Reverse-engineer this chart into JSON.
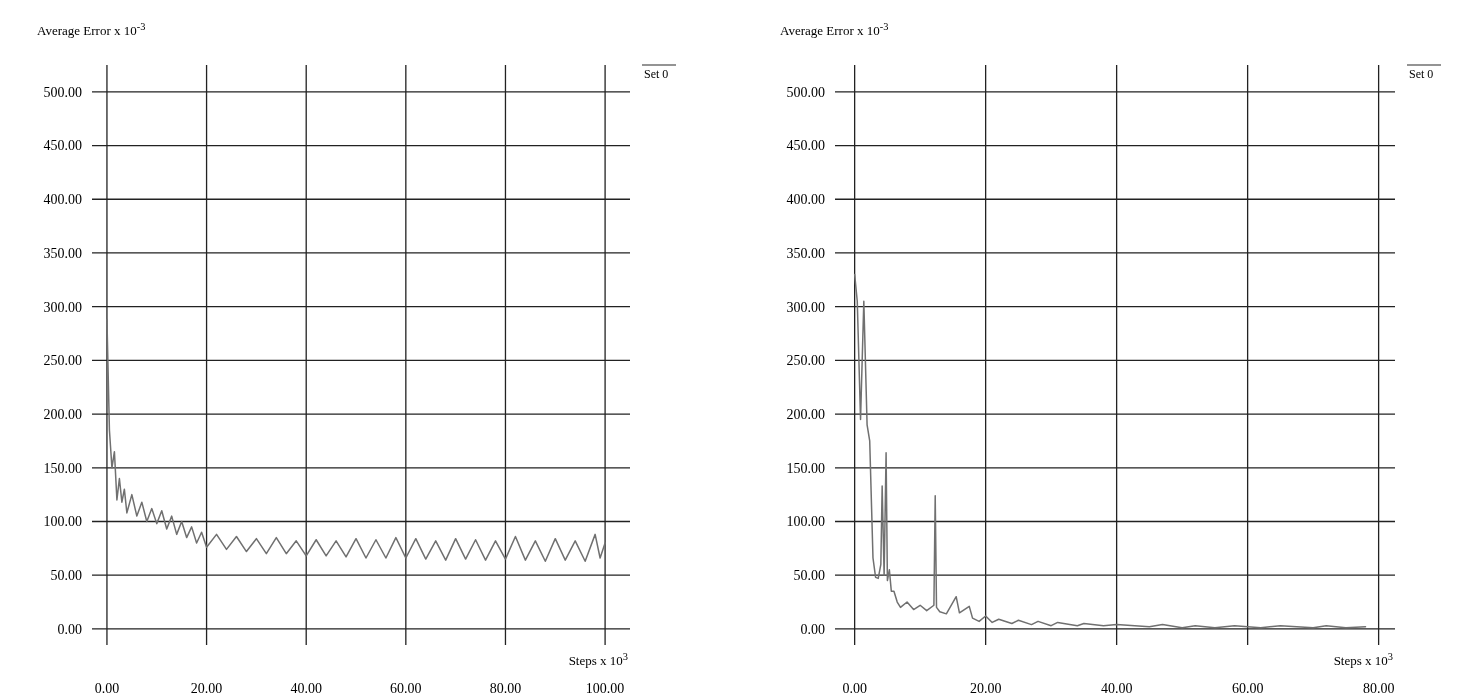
{
  "chart_data": [
    {
      "type": "line",
      "ylabel": "Average Error  x 10$^{-3}$",
      "xlabel": "Steps x 10$^{3}$",
      "xlim": [
        -3,
        105
      ],
      "ylim": [
        -15,
        525
      ],
      "xticks": [
        {
          "value": 0,
          "label": "0.00"
        },
        {
          "value": 20,
          "label": "20.00"
        },
        {
          "value": 40,
          "label": "40.00"
        },
        {
          "value": 60,
          "label": "60.00"
        },
        {
          "value": 80,
          "label": "80.00"
        },
        {
          "value": 100,
          "label": "100.00"
        }
      ],
      "yticks": [
        {
          "value": 0,
          "label": "0.00"
        },
        {
          "value": 50,
          "label": "50.00"
        },
        {
          "value": 100,
          "label": "100.00"
        },
        {
          "value": 150,
          "label": "150.00"
        },
        {
          "value": 200,
          "label": "200.00"
        },
        {
          "value": 250,
          "label": "250.00"
        },
        {
          "value": 300,
          "label": "300.00"
        },
        {
          "value": 350,
          "label": "350.00"
        },
        {
          "value": 400,
          "label": "400.00"
        },
        {
          "value": 450,
          "label": "450.00"
        },
        {
          "value": 500,
          "label": "500.00"
        }
      ],
      "grid": true,
      "legend": "top right",
      "marker": "none",
      "line_style": "solid",
      "series": [
        {
          "name": "Set 0",
          "color": "#707070",
          "x": [
            0,
            0.5,
            1,
            1.5,
            2,
            2.5,
            3,
            3.5,
            4,
            5,
            6,
            7,
            8,
            9,
            10,
            11,
            12,
            13,
            14,
            15,
            16,
            17,
            18,
            19,
            20,
            22,
            24,
            26,
            28,
            30,
            32,
            34,
            36,
            38,
            40,
            42,
            44,
            46,
            48,
            50,
            52,
            54,
            56,
            58,
            60,
            62,
            64,
            66,
            68,
            70,
            72,
            74,
            76,
            78,
            80,
            82,
            84,
            86,
            88,
            90,
            92,
            94,
            96,
            98,
            99,
            100
          ],
          "values": [
            288,
            185,
            150,
            165,
            120,
            140,
            118,
            130,
            108,
            125,
            105,
            118,
            100,
            112,
            98,
            110,
            93,
            105,
            88,
            100,
            85,
            95,
            80,
            90,
            76,
            88,
            74,
            86,
            72,
            84,
            70,
            85,
            70,
            82,
            68,
            83,
            68,
            82,
            67,
            84,
            66,
            83,
            66,
            85,
            66,
            84,
            65,
            82,
            64,
            84,
            65,
            83,
            64,
            82,
            65,
            86,
            64,
            82,
            63,
            84,
            64,
            82,
            63,
            88,
            66,
            80
          ]
        }
      ]
    },
    {
      "type": "line",
      "ylabel": "Average Error  x 10$^{-3}$",
      "xlabel": "Steps x 10$^{3}$",
      "xlim": [
        -3,
        82.5
      ],
      "ylim": [
        -15,
        525
      ],
      "xticks": [
        {
          "value": 0,
          "label": "0.00"
        },
        {
          "value": 20,
          "label": "20.00"
        },
        {
          "value": 40,
          "label": "40.00"
        },
        {
          "value": 60,
          "label": "60.00"
        },
        {
          "value": 80,
          "label": "80.00"
        }
      ],
      "yticks": [
        {
          "value": 0,
          "label": "0.00"
        },
        {
          "value": 50,
          "label": "50.00"
        },
        {
          "value": 100,
          "label": "100.00"
        },
        {
          "value": 150,
          "label": "150.00"
        },
        {
          "value": 200,
          "label": "200.00"
        },
        {
          "value": 250,
          "label": "250.00"
        },
        {
          "value": 300,
          "label": "300.00"
        },
        {
          "value": 350,
          "label": "350.00"
        },
        {
          "value": 400,
          "label": "400.00"
        },
        {
          "value": 450,
          "label": "450.00"
        },
        {
          "value": 500,
          "label": "500.00"
        }
      ],
      "grid": true,
      "legend": "top right",
      "marker": "none",
      "line_style": "solid",
      "series": [
        {
          "name": "Set 0",
          "color": "#707070",
          "x": [
            0,
            0.4,
            0.9,
            1.4,
            1.9,
            2.3,
            2.8,
            3.2,
            3.6,
            4,
            4.2,
            4.5,
            4.8,
            5,
            5.3,
            5.6,
            6,
            6.5,
            7,
            8,
            9,
            10,
            11,
            12.1,
            12.3,
            12.5,
            13,
            14,
            15.5,
            16,
            17.5,
            18,
            19,
            20,
            21,
            22,
            24,
            25,
            27,
            28,
            30,
            31,
            34,
            35,
            38,
            40,
            45,
            47,
            50,
            52,
            55,
            58,
            62,
            65,
            70,
            72,
            75,
            78
          ],
          "values": [
            330,
            305,
            195,
            305,
            190,
            175,
            66,
            48,
            47,
            60,
            133,
            50,
            164,
            45,
            55,
            35,
            35,
            25,
            20,
            25,
            18,
            22,
            17,
            22,
            124,
            20,
            16,
            14,
            30,
            15,
            21,
            10,
            7,
            12,
            6,
            9,
            5,
            8,
            4,
            7,
            3,
            6,
            3,
            5,
            3,
            4,
            2,
            4,
            1,
            3,
            1,
            3,
            1,
            3,
            1,
            3,
            1,
            2
          ]
        }
      ]
    }
  ]
}
